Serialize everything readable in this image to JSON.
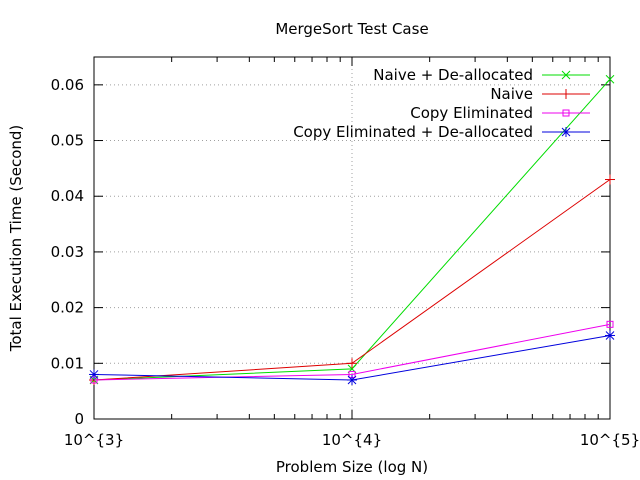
{
  "chart_data": {
    "type": "line",
    "title": "MergeSort Test Case",
    "xlabel": "Problem Size (log N)",
    "ylabel": "Total Execution Time (Second)",
    "x_scale": "log",
    "x": [
      1000,
      10000,
      100000
    ],
    "x_tick_labels": [
      "10^{3}",
      "10^{4}",
      "10^{5}"
    ],
    "xlim": [
      1000,
      100000
    ],
    "ylim": [
      0,
      0.065
    ],
    "y_ticks": [
      0,
      0.01,
      0.02,
      0.03,
      0.04,
      0.05,
      0.06
    ],
    "y_tick_labels": [
      "0",
      "0.01",
      "0.02",
      "0.03",
      "0.04",
      "0.05",
      "0.06"
    ],
    "grid": true,
    "legend_position": "top-right",
    "series": [
      {
        "name": "Naive + De-allocated",
        "values": [
          0.007,
          0.009,
          0.061
        ],
        "color": "#00dd00",
        "marker": "x"
      },
      {
        "name": "Naive",
        "values": [
          0.007,
          0.01,
          0.043
        ],
        "color": "#dd0000",
        "marker": "plus"
      },
      {
        "name": "Copy Eliminated",
        "values": [
          0.007,
          0.008,
          0.017
        ],
        "color": "#ee00ee",
        "marker": "square"
      },
      {
        "name": "Copy Eliminated + De-allocated",
        "values": [
          0.008,
          0.007,
          0.015
        ],
        "color": "#0000dd",
        "marker": "star"
      }
    ]
  }
}
